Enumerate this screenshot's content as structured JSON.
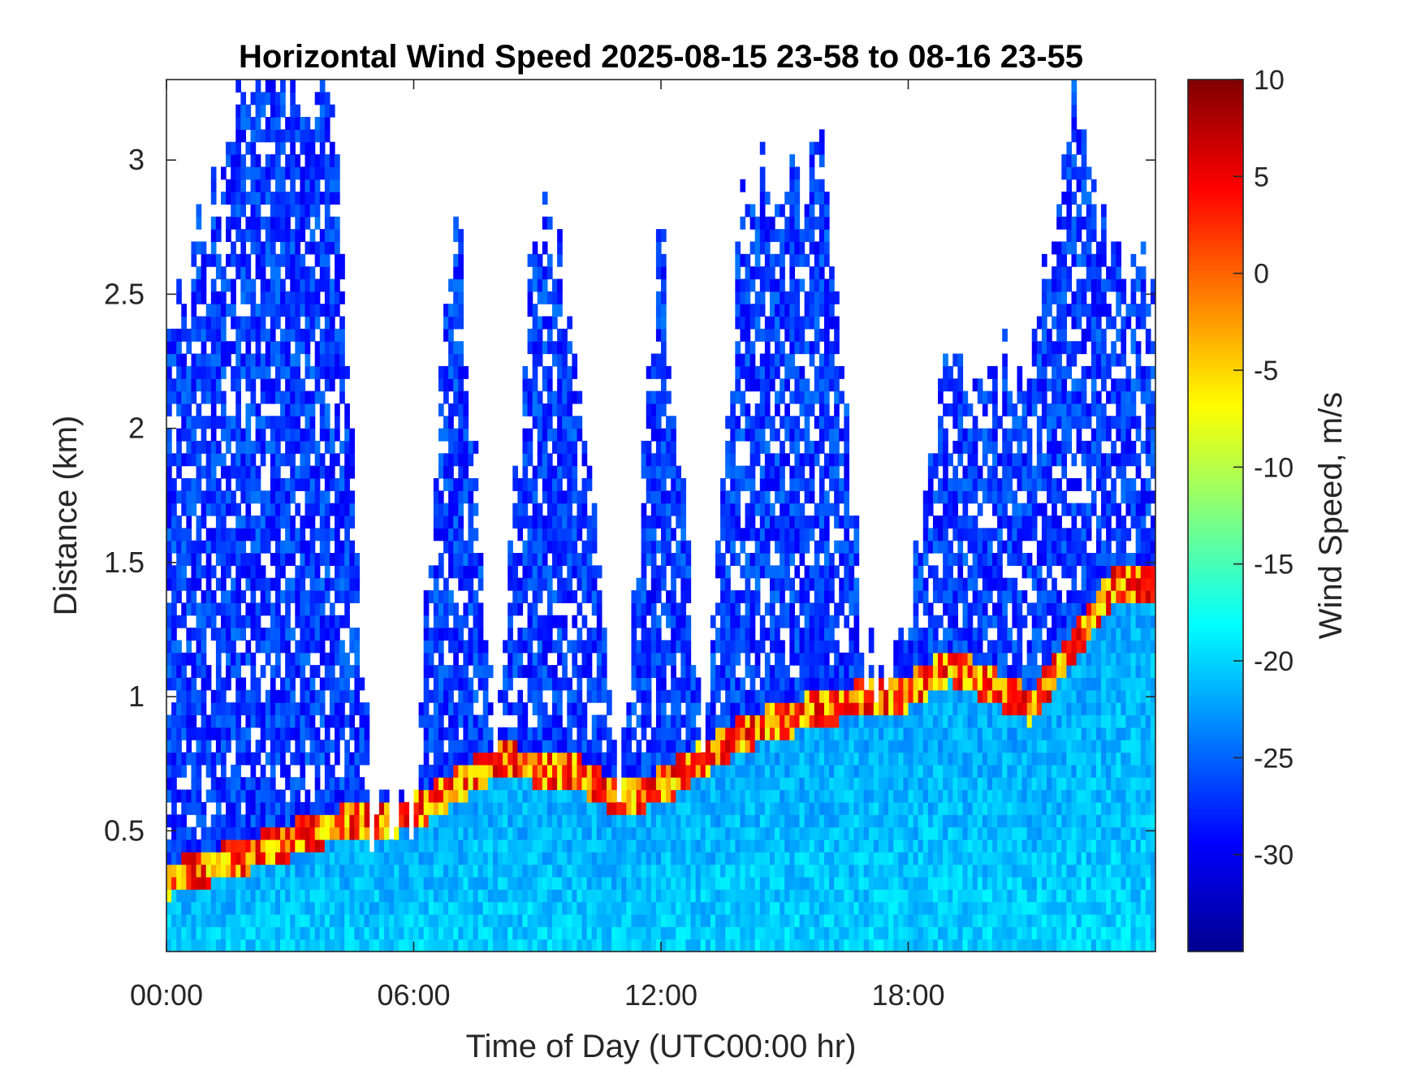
{
  "chart_data": {
    "type": "heatmap",
    "title": "Horizontal Wind Speed 2025-08-15 23-58 to 08-16 23-55",
    "xlabel": "Time of Day (UTC00:00 hr)",
    "ylabel": "Distance (km)",
    "xlim": [
      0,
      24
    ],
    "ylim": [
      0.05,
      3.3
    ],
    "x_ticks": [
      0,
      6,
      12,
      18
    ],
    "x_tick_labels": [
      "00:00",
      "06:00",
      "12:00",
      "18:00"
    ],
    "y_ticks": [
      0.5,
      1,
      1.5,
      2,
      2.5,
      3
    ],
    "y_tick_labels": [
      "0.5",
      "1",
      "1.5",
      "2",
      "2.5",
      "3"
    ],
    "colorbar": {
      "label": "Wind Speed, m/s",
      "colormap": "jet",
      "range": [
        -35,
        10
      ],
      "ticks": [
        10,
        5,
        0,
        -5,
        -10,
        -15,
        -20,
        -25,
        -30
      ],
      "tick_labels": [
        "10",
        "5",
        "0",
        "-5",
        "-10",
        "-15",
        "-20",
        "-25",
        "-30"
      ]
    },
    "approx_data_top_km_by_hour": [
      {
        "hour": 0,
        "top_km": 2.3
      },
      {
        "hour": 1,
        "top_km": 2.8
      },
      {
        "hour": 2,
        "top_km": 3.3
      },
      {
        "hour": 3,
        "top_km": 3.3
      },
      {
        "hour": 4,
        "top_km": 3.3
      },
      {
        "hour": 5,
        "top_km": 0.55
      },
      {
        "hour": 6,
        "top_km": 0.6
      },
      {
        "hour": 7,
        "top_km": 2.9
      },
      {
        "hour": 8,
        "top_km": 0.8
      },
      {
        "hour": 9,
        "top_km": 2.9
      },
      {
        "hour": 10,
        "top_km": 2.3
      },
      {
        "hour": 11,
        "top_km": 0.65
      },
      {
        "hour": 12,
        "top_km": 2.7
      },
      {
        "hour": 13,
        "top_km": 0.8
      },
      {
        "hour": 14,
        "top_km": 2.9
      },
      {
        "hour": 15,
        "top_km": 2.9
      },
      {
        "hour": 16,
        "top_km": 2.95
      },
      {
        "hour": 17,
        "top_km": 1.05
      },
      {
        "hour": 18,
        "top_km": 1.2
      },
      {
        "hour": 19,
        "top_km": 2.3
      },
      {
        "hour": 20,
        "top_km": 2.2
      },
      {
        "hour": 21,
        "top_km": 2.2
      },
      {
        "hour": 22,
        "top_km": 3.2
      },
      {
        "hour": 23,
        "top_km": 2.6
      }
    ],
    "approx_boundary_layer_top_km_by_hour": [
      {
        "hour": 0,
        "km": 0.3
      },
      {
        "hour": 3,
        "km": 0.45
      },
      {
        "hour": 4,
        "km": 0.5
      },
      {
        "hour": 6,
        "km": 0.55
      },
      {
        "hour": 8,
        "km": 0.75
      },
      {
        "hour": 10,
        "km": 0.7
      },
      {
        "hour": 11,
        "km": 0.6
      },
      {
        "hour": 12,
        "km": 0.65
      },
      {
        "hour": 13,
        "km": 0.75
      },
      {
        "hour": 14,
        "km": 0.85
      },
      {
        "hour": 16,
        "km": 0.95
      },
      {
        "hour": 18,
        "km": 1.0
      },
      {
        "hour": 19,
        "km": 1.1
      },
      {
        "hour": 21,
        "km": 0.95
      },
      {
        "hour": 23,
        "km": 1.4
      }
    ]
  }
}
